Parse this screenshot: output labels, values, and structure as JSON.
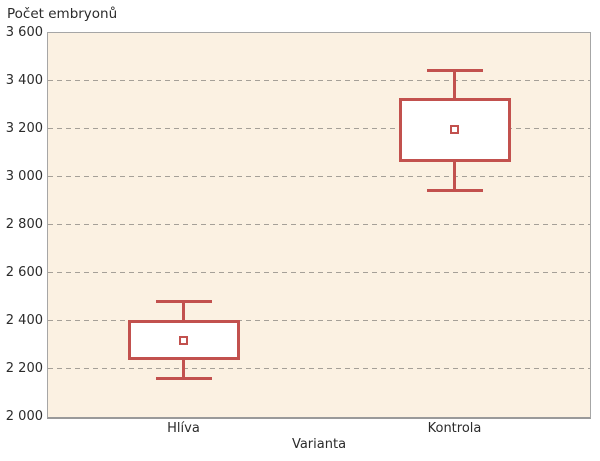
{
  "colors": {
    "red": "#c2514e",
    "plot_bg": "#fbf1e2",
    "grid": "#a5a098",
    "border": "#a6a6a6",
    "border_bottom": "#9a9a9a",
    "text": "#2b2b2b"
  },
  "chart_data": {
    "type": "boxplot",
    "title": "Počet embryonů",
    "xlabel": "Varianta",
    "ylabel": "Počet embryonů",
    "categories": [
      "Hlíva",
      "Kontrola"
    ],
    "series": [
      {
        "name": "Hlíva",
        "whisker_low": 2160,
        "q1": 2245,
        "mean": 2320,
        "q3": 2400,
        "whisker_high": 2480
      },
      {
        "name": "Kontrola",
        "whisker_low": 2945,
        "q1": 3070,
        "mean": 3200,
        "q3": 3325,
        "whisker_high": 3445
      }
    ],
    "marker": "mean-hollow-square",
    "grid": "horizontal-dashed",
    "legend": "none",
    "ylim": [
      2000,
      3600
    ],
    "ytick_step": 200,
    "yticks": [
      {
        "value": 3600,
        "label": "3 600"
      },
      {
        "value": 3400,
        "label": "3 400"
      },
      {
        "value": 3200,
        "label": "3 200"
      },
      {
        "value": 3000,
        "label": "3 000"
      },
      {
        "value": 2800,
        "label": "2 800"
      },
      {
        "value": 2600,
        "label": "2 600"
      },
      {
        "value": 2400,
        "label": "2 400"
      },
      {
        "value": 2200,
        "label": "2 200"
      },
      {
        "value": 2000,
        "label": "2 000"
      }
    ]
  }
}
